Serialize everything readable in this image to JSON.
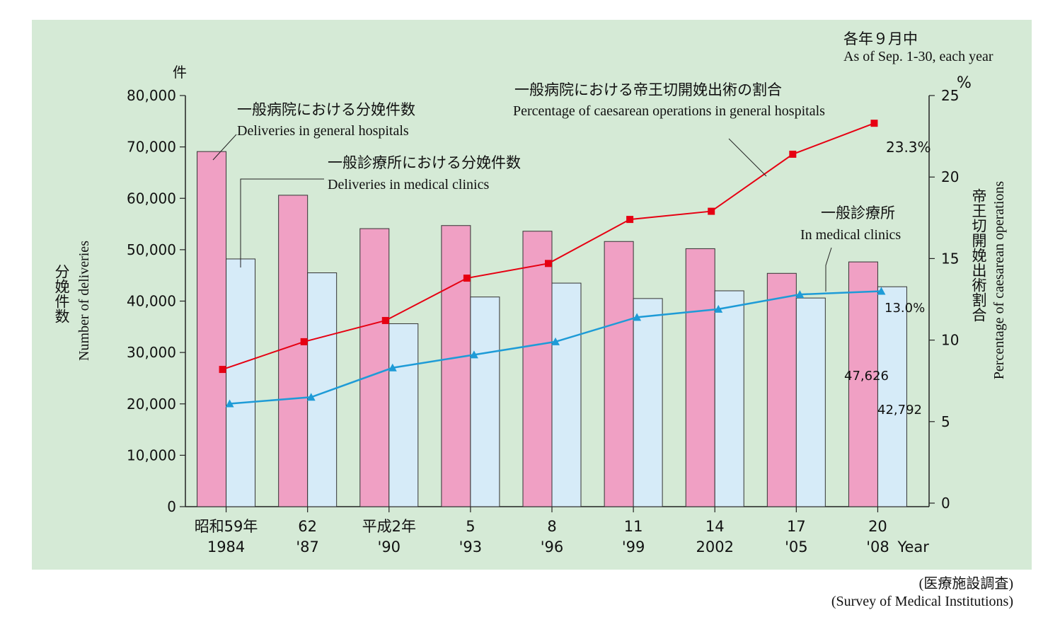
{
  "chart_data": {
    "type": "bar",
    "categories": [
      {
        "top": "昭和59年",
        "bottom": "1984"
      },
      {
        "top": "62",
        "bottom": "'87"
      },
      {
        "top": "平成2年",
        "bottom": "'90"
      },
      {
        "top": "5",
        "bottom": "'93"
      },
      {
        "top": "8",
        "bottom": "'96"
      },
      {
        "top": "11",
        "bottom": "'99"
      },
      {
        "top": "14",
        "bottom": "2002"
      },
      {
        "top": "17",
        "bottom": "'05"
      },
      {
        "top": "20",
        "bottom": "'08"
      }
    ],
    "x_unit": "Year",
    "series": [
      {
        "name": "一般病院における分娩件数 / Deliveries in general hospitals",
        "kind": "bar",
        "axis": "left",
        "color": "#f0a0c4",
        "values": [
          69100,
          60600,
          54100,
          54700,
          53600,
          51600,
          50200,
          45400,
          47626
        ]
      },
      {
        "name": "一般診療所における分娩件数 / Deliveries in medical clinics",
        "kind": "bar",
        "axis": "left",
        "color": "#d6ebf8",
        "values": [
          48200,
          45500,
          35600,
          40800,
          43500,
          40500,
          42000,
          40600,
          42792
        ]
      },
      {
        "name": "一般病院における帝王切開娩出術の割合 / Percentage of caesarean operations in general hospitals",
        "kind": "line",
        "axis": "right",
        "color": "#e60012",
        "marker": "square",
        "values": [
          8.2,
          9.9,
          11.2,
          13.8,
          14.7,
          17.4,
          17.9,
          21.4,
          23.3
        ]
      },
      {
        "name": "一般診療所 / In medical clinics",
        "kind": "line",
        "axis": "right",
        "color": "#1e9bd7",
        "marker": "triangle",
        "values": [
          6.1,
          6.5,
          8.3,
          9.1,
          9.9,
          11.4,
          11.9,
          12.8,
          13.0
        ]
      }
    ],
    "y_left": {
      "min": 0,
      "max": 80000,
      "ticks": [
        "0",
        "10,000",
        "20,000",
        "30,000",
        "40,000",
        "50,000",
        "60,000",
        "70,000",
        "80,000"
      ],
      "unit": "件",
      "label_jp": "分娩件数",
      "label_en": "Number of deliveries"
    },
    "y_right": {
      "min": 0,
      "max": 25,
      "ticks": [
        "0",
        "5",
        "10",
        "15",
        "20",
        "25"
      ],
      "unit": "%",
      "label_jp": "帝王切開娩出術割合",
      "label_en": "Percentage of caesarean operations"
    },
    "annotations": {
      "note_jp": "各年９月中",
      "note_en": "As of Sep. 1-30, each year",
      "hosp_bar_jp": "一般病院における分娩件数",
      "hosp_bar_en": "Deliveries in general hospitals",
      "clinic_bar_jp": "一般診療所における分娩件数",
      "clinic_bar_en": "Deliveries in medical clinics",
      "hosp_line_jp": "一般病院における帝王切開娩出術の割合",
      "hosp_line_en": "Percentage of caesarean operations in general hospitals",
      "clinic_line_jp": "一般診療所",
      "clinic_line_en": "In medical clinics",
      "last_hosp_pct": "23.3%",
      "last_clinic_pct": "13.0%",
      "last_hosp_count": "47,626",
      "last_clinic_count": "42,792"
    },
    "source_jp": "(医療施設調査)",
    "source_en": "(Survey of Medical Institutions)",
    "grid": false,
    "background": "#d5ead6"
  }
}
